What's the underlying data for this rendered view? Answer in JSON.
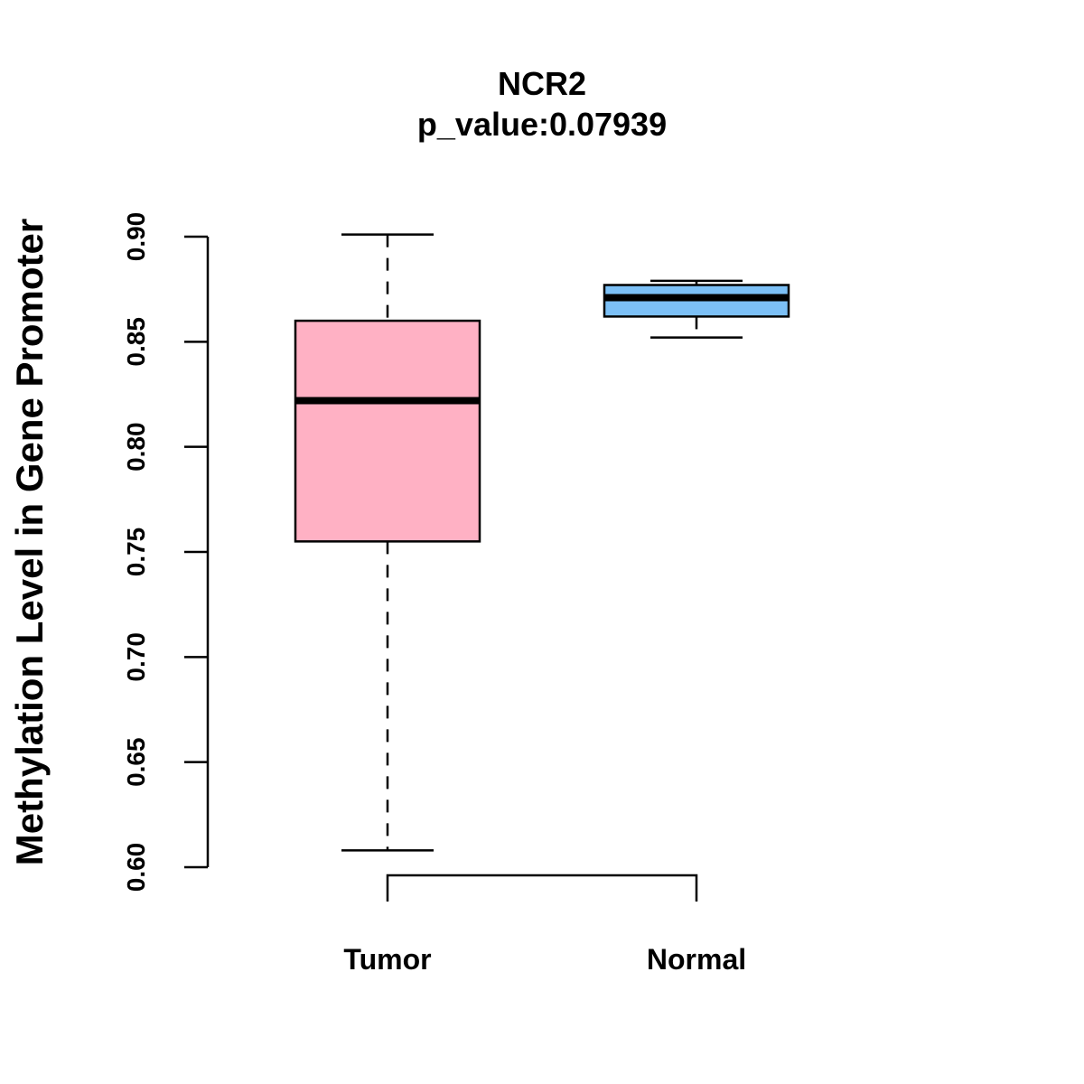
{
  "chart_data": {
    "type": "boxplot",
    "title": "NCR2",
    "subtitle": "p_value:0.07939",
    "xlabel": "",
    "ylabel": "Methylation Level in Gene Promoter",
    "ylim": [
      0.6,
      0.9
    ],
    "yticks": [
      0.6,
      0.65,
      0.7,
      0.75,
      0.8,
      0.85,
      0.9
    ],
    "ytick_labels": [
      "0.60",
      "0.65",
      "0.70",
      "0.75",
      "0.80",
      "0.85",
      "0.90"
    ],
    "categories": [
      "Tumor",
      "Normal"
    ],
    "boxes": [
      {
        "name": "Tumor",
        "whisker_low": 0.608,
        "q1": 0.755,
        "median": 0.822,
        "q3": 0.86,
        "whisker_high": 0.901,
        "color": "#FFB1C4"
      },
      {
        "name": "Normal",
        "whisker_low": 0.852,
        "q1": 0.862,
        "median": 0.871,
        "q3": 0.877,
        "whisker_high": 0.879,
        "color": "#7CC0F6"
      }
    ],
    "significance_bracket": true,
    "grid": false
  }
}
